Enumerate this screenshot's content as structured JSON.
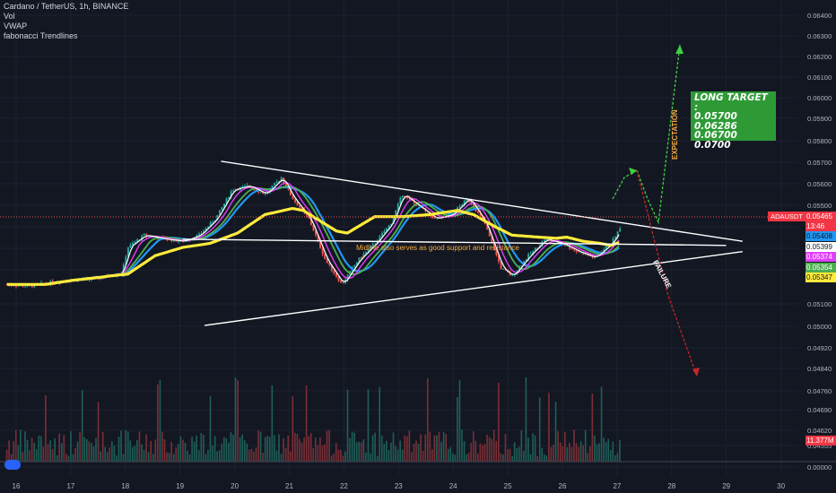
{
  "header": {
    "symbol": "Cardano / TetherUS, 1h, BINANCE",
    "indicators": [
      "Vol",
      "VWAP",
      "fabonacci Trendlines"
    ]
  },
  "annotations": {
    "long_target_title": "LONG TARGET :",
    "long_targets": [
      "0.05700",
      "0.06286",
      "0.06700",
      "0.0700"
    ],
    "expectation": "EXPECTATION",
    "failure": "FAILURE",
    "midline_note": "Midline also serves as good support and resistance"
  },
  "price_scale": {
    "ticks": [
      "0.06400",
      "0.06300",
      "0.06200",
      "0.06100",
      "0.06000",
      "0.05900",
      "0.05800",
      "0.05700",
      "0.05600",
      "0.05500",
      "0.05400",
      "0.05300",
      "0.05200",
      "0.05100",
      "0.05000",
      "0.04920",
      "0.04840",
      "0.04760",
      "0.04690",
      "0.04620",
      "0.04555",
      "0.00000"
    ],
    "ticker_label": "ADAUSDT",
    "current_price": "0.05465",
    "countdown": "13:46",
    "value_tags": [
      {
        "text": "0.05408",
        "color": "#2196f3",
        "text_color": "#131722"
      },
      {
        "text": "0.05399",
        "color": "#ffffff",
        "text_color": "#131722"
      },
      {
        "text": "0.05374",
        "color": "#e040fb",
        "text_color": "#ffffff"
      },
      {
        "text": "0.05354",
        "color": "#4caf50",
        "text_color": "#ffffff"
      },
      {
        "text": "0.05347",
        "color": "#ffeb3b",
        "text_color": "#131722"
      }
    ],
    "volume_tag": "11.377M"
  },
  "time_axis": {
    "labels": [
      "16",
      "17",
      "18",
      "19",
      "20",
      "21",
      "22",
      "23",
      "24",
      "25",
      "26",
      "27",
      "28",
      "29",
      "30"
    ]
  },
  "colors": {
    "background": "#131722",
    "grid": "#1e2230",
    "up": "#26a69a",
    "down": "#ef5350",
    "vwap": "#ffeb3b",
    "ma_blue": "#2196f3",
    "ma_green": "#4caf50",
    "ma_pink": "#e040fb",
    "ma_white": "#ffffff",
    "target_box": "#2e9a36",
    "expectation_arrow": "#3fd13f",
    "failure_arrow": "#c62828",
    "midline_text": "#f6a93b"
  },
  "chart_data": {
    "type": "line",
    "series": [
      {
        "name": "VWAP",
        "x": [
          15.8,
          16.5,
          17.0,
          17.5,
          17.8,
          18.0,
          18.5,
          19.0,
          19.5,
          20.0,
          20.5,
          21.0,
          21.2,
          21.5,
          21.8,
          22.0,
          22.5,
          23.0,
          23.5,
          24.0,
          24.3,
          24.7,
          25.0,
          25.5,
          25.8,
          26.0,
          26.3,
          26.6,
          26.8,
          27.0
        ],
        "y": [
          0.0518,
          0.0518,
          0.052,
          0.05215,
          0.05225,
          0.0523,
          0.0532,
          0.0536,
          0.0538,
          0.0543,
          0.0552,
          0.0555,
          0.0554,
          0.0549,
          0.0544,
          0.0543,
          0.0551,
          0.0551,
          0.0552,
          0.0554,
          0.0552,
          0.0546,
          0.0542,
          0.0541,
          0.05405,
          0.0541,
          0.0539,
          0.0538,
          0.0537,
          0.0539
        ]
      },
      {
        "name": "Price (approx close)",
        "x": [
          15.8,
          16.2,
          16.6,
          17.0,
          17.5,
          17.9,
          18.0,
          18.3,
          18.7,
          19.0,
          19.3,
          19.6,
          19.9,
          20.2,
          20.5,
          20.8,
          21.0,
          21.3,
          21.6,
          21.9,
          22.2,
          22.5,
          22.8,
          23.0,
          23.3,
          23.6,
          23.9,
          24.2,
          24.5,
          24.8,
          25.0,
          25.3,
          25.6,
          25.9,
          26.2,
          26.5,
          26.8,
          27.0
        ],
        "y": [
          0.0518,
          0.0517,
          0.0519,
          0.052,
          0.0521,
          0.0524,
          0.0536,
          0.0542,
          0.054,
          0.0539,
          0.0542,
          0.055,
          0.0564,
          0.0566,
          0.0562,
          0.057,
          0.056,
          0.055,
          0.053,
          0.0518,
          0.053,
          0.0538,
          0.0548,
          0.0562,
          0.0556,
          0.055,
          0.0552,
          0.056,
          0.0548,
          0.0526,
          0.0522,
          0.0532,
          0.054,
          0.0538,
          0.0534,
          0.0531,
          0.0538,
          0.05465
        ]
      }
    ],
    "trendlines": [
      {
        "name": "upper",
        "from": [
          19.7,
          0.0578
        ],
        "to": [
          29.2,
          0.0539
        ]
      },
      {
        "name": "middle",
        "from": [
          19.0,
          0.054
        ],
        "to": [
          28.9,
          0.0537
        ]
      },
      {
        "name": "lower",
        "from": [
          19.4,
          0.0498
        ],
        "to": [
          29.2,
          0.0534
        ]
      }
    ],
    "ylim": [
      0.0497,
      0.0645
    ],
    "xlim": [
      15.8,
      30.2
    ],
    "grid": true
  }
}
